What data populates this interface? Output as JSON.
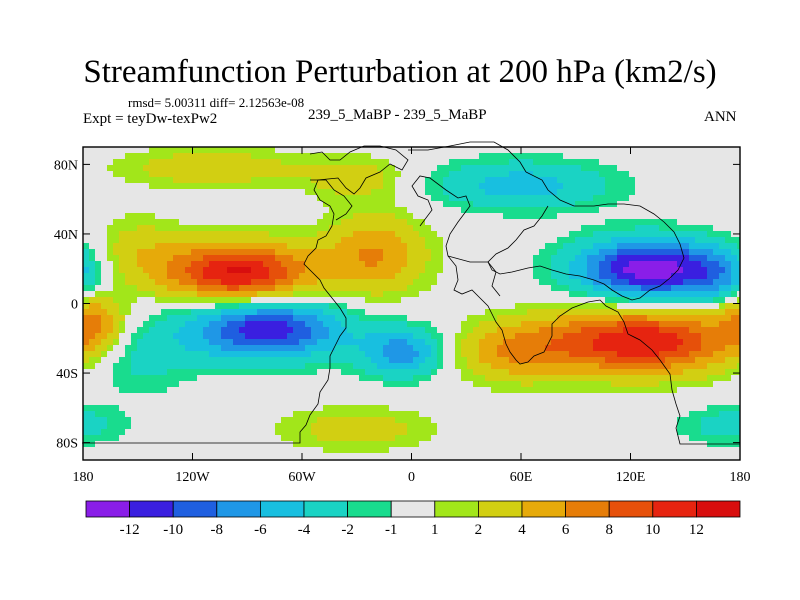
{
  "chart_data": {
    "type": "heatmap",
    "title": "Streamfunction Perturbation at 200 hPa (km2/s)",
    "stats": "rmsd= 5.00311 diff= 2.12563e-08",
    "left_label": "Expt = teyDw-texPw2",
    "center_label": "239_5_MaBP - 239_5_MaBP",
    "right_label": "ANN",
    "x_axis": {
      "range": [
        -180,
        180
      ],
      "ticks": [
        -180,
        -120,
        -60,
        0,
        60,
        120,
        180
      ],
      "tick_labels": [
        "180",
        "120W",
        "60W",
        "0",
        "60E",
        "120E",
        "180"
      ]
    },
    "y_axis": {
      "range": [
        -90,
        90
      ],
      "ticks": [
        80,
        40,
        0,
        -40,
        -80
      ],
      "tick_labels": [
        "80N",
        "40N",
        "0",
        "40S",
        "80S"
      ]
    },
    "colorbar": {
      "levels": [
        -12,
        -10,
        -8,
        -6,
        -4,
        -2,
        -1,
        1,
        2,
        4,
        6,
        8,
        10,
        12
      ],
      "labels": [
        "-12",
        "-10",
        "-8",
        "-6",
        "-4",
        "-2",
        "-1",
        "1",
        "2",
        "4",
        "6",
        "8",
        "10",
        "12"
      ],
      "colors": [
        "#8a1ee8",
        "#3a1fe0",
        "#1f5fe0",
        "#1f97e6",
        "#18bfe0",
        "#1ad3c4",
        "#19dc8e",
        "#e6e6e6",
        "#a2e61a",
        "#d2cf12",
        "#e6aa0a",
        "#e67d08",
        "#e6500a",
        "#e62410",
        "#d80e0e"
      ]
    },
    "field_centers": [
      {
        "lon": -95,
        "lat": 18,
        "amp": 12.5,
        "slon": 28,
        "slat": 12
      },
      {
        "lon": -20,
        "lat": 28,
        "amp": 6.0,
        "slon": 20,
        "slat": 16
      },
      {
        "lon": -150,
        "lat": 30,
        "amp": 3.0,
        "slon": 18,
        "slat": 14
      },
      {
        "lon": -110,
        "lat": 78,
        "amp": 3.5,
        "slon": 35,
        "slat": 8
      },
      {
        "lon": -30,
        "lat": 72,
        "amp": 3.0,
        "slon": 20,
        "slat": 9
      },
      {
        "lon": -80,
        "lat": -15,
        "amp": -11.5,
        "slon": 30,
        "slat": 12
      },
      {
        "lon": -5,
        "lat": -28,
        "amp": -7.0,
        "slon": 16,
        "slat": 10
      },
      {
        "lon": -150,
        "lat": -30,
        "amp": -3.0,
        "slon": 22,
        "slat": 15
      },
      {
        "lon": 130,
        "lat": 20,
        "amp": -13.5,
        "slon": 28,
        "slat": 12
      },
      {
        "lon": 60,
        "lat": 68,
        "amp": -5.0,
        "slon": 35,
        "slat": 10
      },
      {
        "lon": 170,
        "lat": 15,
        "amp": -4.0,
        "slon": 15,
        "slat": 12
      },
      {
        "lon": 125,
        "lat": -22,
        "amp": 12.0,
        "slon": 38,
        "slat": 13
      },
      {
        "lon": 55,
        "lat": -28,
        "amp": 5.0,
        "slon": 22,
        "slat": 12
      },
      {
        "lon": -175,
        "lat": -10,
        "amp": 6.0,
        "slon": 12,
        "slat": 12
      },
      {
        "lon": -30,
        "lat": -72,
        "amp": 3.0,
        "slon": 30,
        "slat": 9
      },
      {
        "lon": 175,
        "lat": -70,
        "amp": -3.0,
        "slon": 20,
        "slat": 8
      }
    ]
  }
}
